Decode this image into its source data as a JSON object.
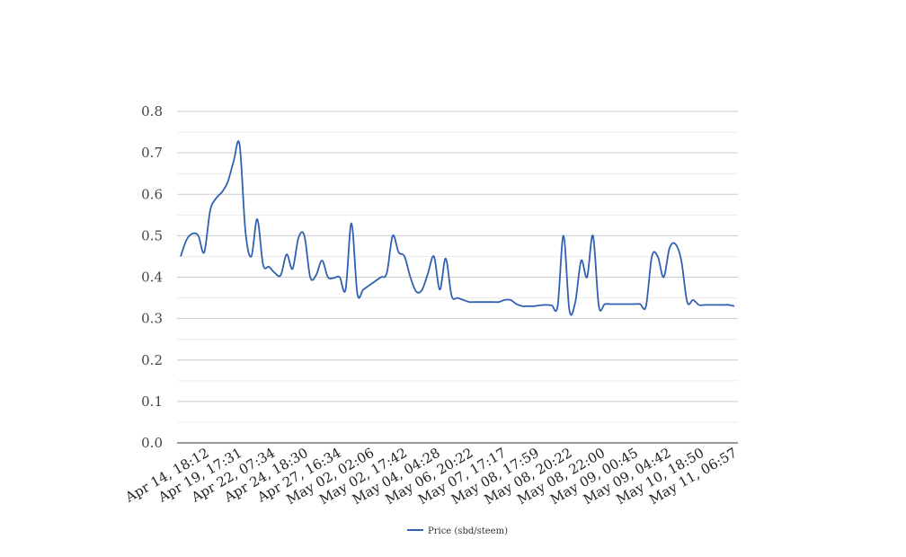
{
  "colors": {
    "line": "#3060b0",
    "grid": "#cccccc",
    "minor_grid": "#ececec",
    "axis": "#333333"
  },
  "chart_data": {
    "type": "line",
    "title": "",
    "xlabel": "",
    "ylabel": "",
    "ylim": [
      0,
      0.8
    ],
    "yticks": [
      "0.0",
      "0.1",
      "0.2",
      "0.3",
      "0.4",
      "0.5",
      "0.6",
      "0.7",
      "0.8"
    ],
    "ytick_values": [
      0,
      0.1,
      0.2,
      0.3,
      0.4,
      0.5,
      0.6,
      0.7,
      0.8
    ],
    "grid": true,
    "legend": "bottom-center",
    "xticks": [
      "Apr 14, 18:12",
      "Apr 19, 17:31",
      "Apr 22, 07:34",
      "Apr 24, 18:30",
      "Apr 27, 16:34",
      "May 02, 02:06",
      "May 02, 17:42",
      "May 04, 04:28",
      "May 06, 20:22",
      "May 07, 17:17",
      "May 08, 17:59",
      "May 08, 20:22",
      "May 08, 22:00",
      "May 09, 00:45",
      "May 09, 04:42",
      "May 10, 18:50",
      "May 11, 06:57"
    ],
    "series": [
      {
        "name": "Price (sbd/steem)",
        "values": [
          0.45,
          0.49,
          0.505,
          0.5,
          0.46,
          0.56,
          0.59,
          0.605,
          0.63,
          0.68,
          0.72,
          0.51,
          0.45,
          0.54,
          0.43,
          0.425,
          0.41,
          0.405,
          0.455,
          0.42,
          0.495,
          0.5,
          0.4,
          0.405,
          0.44,
          0.4,
          0.398,
          0.4,
          0.37,
          0.53,
          0.36,
          0.37,
          0.38,
          0.39,
          0.4,
          0.41,
          0.5,
          0.46,
          0.45,
          0.4,
          0.365,
          0.37,
          0.41,
          0.45,
          0.37,
          0.445,
          0.355,
          0.35,
          0.345,
          0.34,
          0.34,
          0.34,
          0.34,
          0.34,
          0.34,
          0.345,
          0.345,
          0.335,
          0.33,
          0.33,
          0.33,
          0.332,
          0.333,
          0.332,
          0.33,
          0.5,
          0.32,
          0.34,
          0.44,
          0.4,
          0.5,
          0.33,
          0.335,
          0.335,
          0.335,
          0.335,
          0.335,
          0.335,
          0.335,
          0.33,
          0.45,
          0.45,
          0.4,
          0.47,
          0.48,
          0.44,
          0.34,
          0.345,
          0.333,
          0.333,
          0.333,
          0.333,
          0.333,
          0.333,
          0.33
        ]
      }
    ]
  }
}
